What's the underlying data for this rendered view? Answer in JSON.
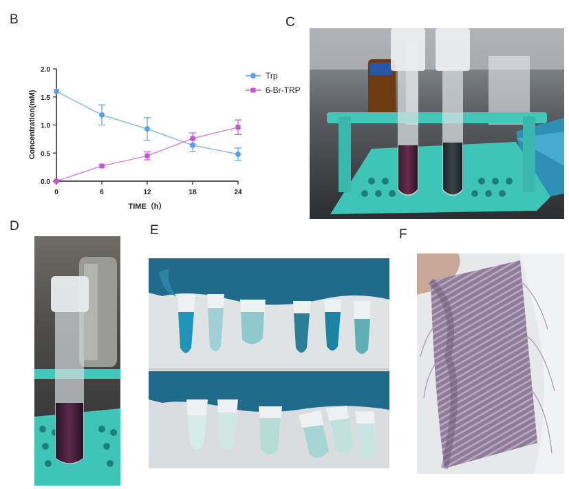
{
  "panel_labels": {
    "b": "B",
    "c": "C",
    "d": "D",
    "e": "E",
    "f": "F"
  },
  "chart_data": {
    "type": "line",
    "title": "",
    "xlabel": "TIME（h）",
    "ylabel": "Concentration(mM)",
    "x": [
      0,
      6,
      12,
      18,
      24
    ],
    "xlim": [
      0,
      24
    ],
    "ylim": [
      0,
      2.0
    ],
    "xticks": [
      "0",
      "6",
      "12",
      "18",
      "24"
    ],
    "yticks": [
      "0.0",
      "0.5",
      "1.0",
      "1.5",
      "2.0"
    ],
    "grid": false,
    "legend_position": "top-right",
    "series": [
      {
        "name": "Trp",
        "color": "#5b9ee9",
        "marker": "circle",
        "values": [
          1.6,
          1.18,
          0.93,
          0.64,
          0.48
        ],
        "errors": [
          0.0,
          0.18,
          0.2,
          0.11,
          0.11
        ]
      },
      {
        "name": "6-Br-TRP",
        "color": "#c555d6",
        "marker": "square",
        "values": [
          0.0,
          0.27,
          0.45,
          0.76,
          0.96
        ],
        "errors": [
          0.0,
          0.02,
          0.07,
          0.1,
          0.13
        ]
      }
    ]
  }
}
